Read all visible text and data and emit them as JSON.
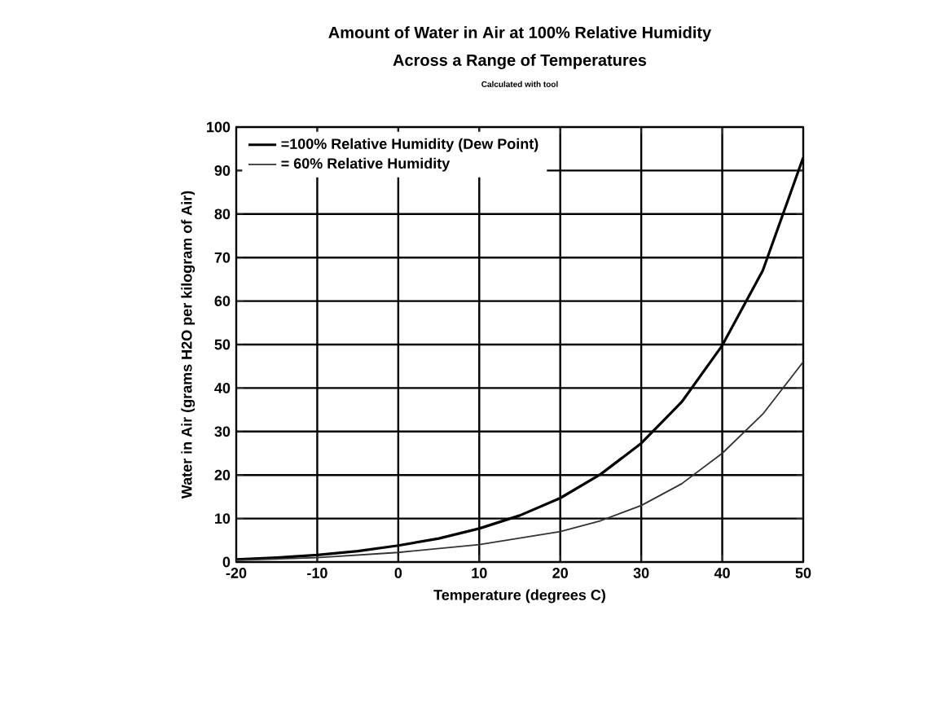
{
  "chart_data": {
    "type": "line",
    "title": "Amount of Water in Air at 100% Relative Humidity",
    "subtitle": "Across a Range of Temperatures",
    "annotations": [
      "Calculated with tool"
    ],
    "xlabel": "Temperature (degrees C)",
    "ylabel": "Water in Air (grams H2O per kilogram of Air)",
    "xlim": [
      -20,
      50
    ],
    "xticks": [
      -20,
      -10,
      0,
      10,
      20,
      30,
      40,
      50
    ],
    "ylim": [
      0,
      100
    ],
    "yticks": [
      0,
      10,
      20,
      30,
      40,
      50,
      60,
      70,
      80,
      90,
      100
    ],
    "grid": true,
    "legend": "top left",
    "marker": "none",
    "line_style": "solid",
    "series": [
      {
        "name": "=100% Relative Humidity (Dew Point)",
        "color": "#000000",
        "x": [
          -20,
          -15,
          -10,
          -5,
          0,
          5,
          10,
          15,
          20,
          25,
          30,
          35,
          40,
          45,
          50
        ],
        "values": [
          0.6,
          1.0,
          1.6,
          2.5,
          3.8,
          5.4,
          7.7,
          10.7,
          14.7,
          20.2,
          27.3,
          36.8,
          49.8,
          67,
          93
        ]
      },
      {
        "name": "= 60% Relative Humidity",
        "color": "#333333",
        "x": [
          -20,
          -10,
          0,
          10,
          20,
          25,
          30,
          35,
          40,
          45,
          50
        ],
        "values": [
          0.4,
          1.0,
          2.2,
          4.0,
          7.0,
          9.5,
          13,
          18,
          25,
          34,
          46
        ]
      }
    ]
  }
}
